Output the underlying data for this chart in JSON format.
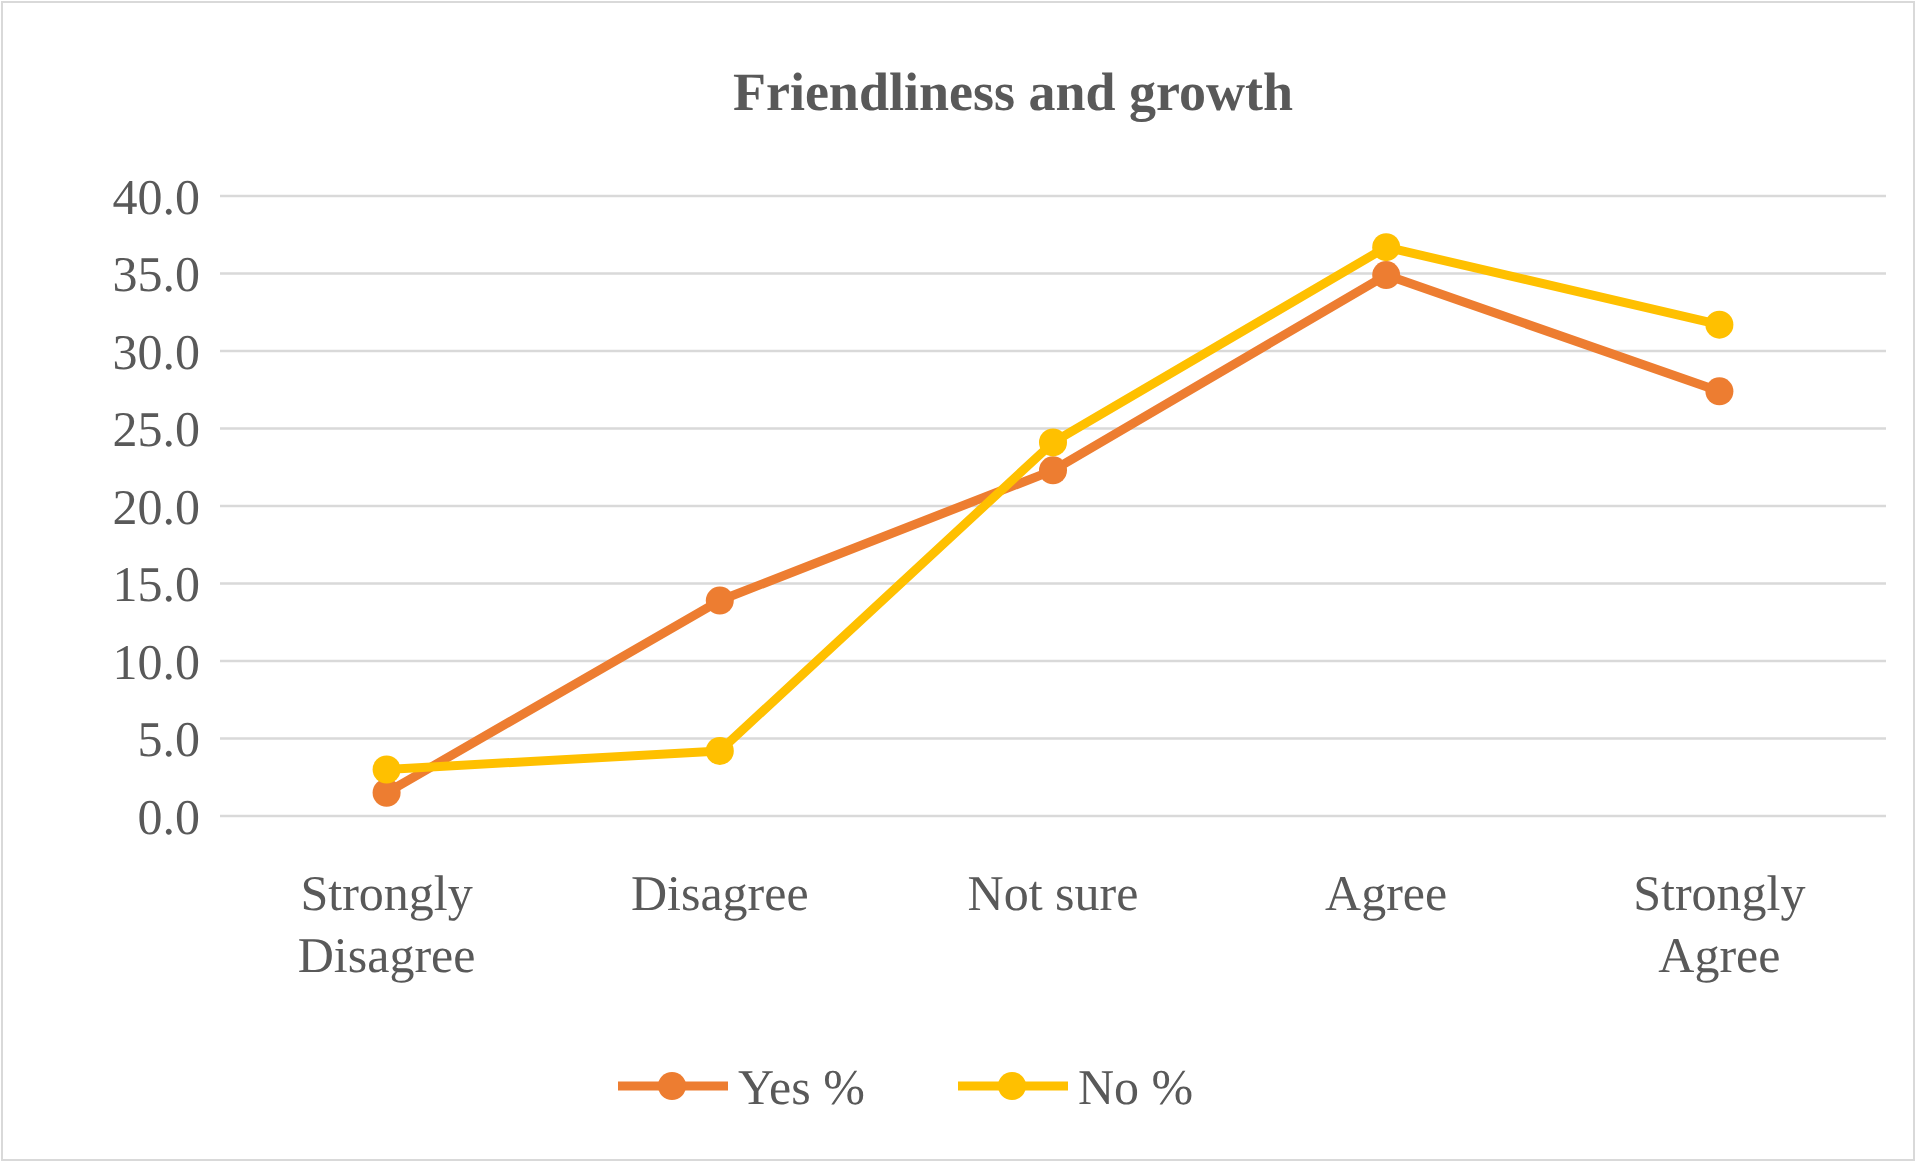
{
  "chart_data": {
    "type": "line",
    "title": "Friendliness and growth",
    "categories": [
      "Strongly Disagree",
      "Disagree",
      "Not sure",
      "Agree",
      "Strongly Agree"
    ],
    "series": [
      {
        "name": "Yes %",
        "color": "#ed7d31",
        "values": [
          1.5,
          13.9,
          22.3,
          34.9,
          27.4
        ]
      },
      {
        "name": "No %",
        "color": "#ffc000",
        "values": [
          3.0,
          4.2,
          24.1,
          36.7,
          31.7
        ]
      }
    ],
    "ylim": [
      0,
      40
    ],
    "yticks": [
      {
        "value": 0,
        "label": "0.0"
      },
      {
        "value": 5,
        "label": "5.0"
      },
      {
        "value": 10,
        "label": "10.0"
      },
      {
        "value": 15,
        "label": "15.0"
      },
      {
        "value": 20,
        "label": "20.0"
      },
      {
        "value": 25,
        "label": "25.0"
      },
      {
        "value": 30,
        "label": "30.0"
      },
      {
        "value": 35,
        "label": "35.0"
      },
      {
        "value": 40,
        "label": "40.0"
      }
    ],
    "grid": "y",
    "legend": "bottom",
    "marker": "circle",
    "line_style": "solid"
  }
}
